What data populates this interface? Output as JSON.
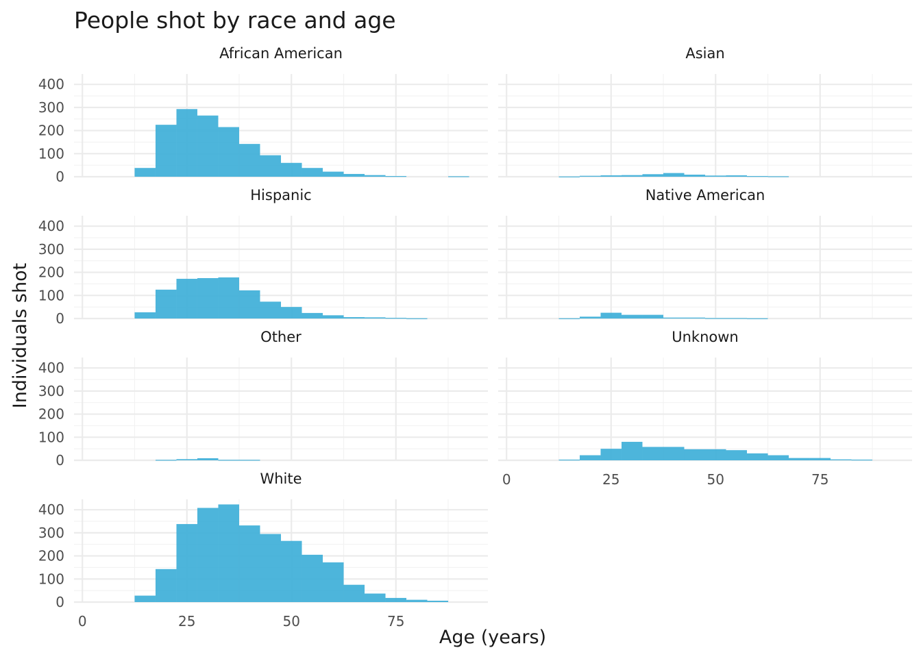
{
  "chart_data": {
    "type": "bar",
    "subtype": "faceted-histogram",
    "title": "People shot by race and age",
    "xlabel": "Age (years)",
    "ylabel": "Individuals shot",
    "xlim": [
      -2,
      97
    ],
    "ylim": [
      0,
      445
    ],
    "x_ticks": [
      0,
      25,
      50,
      75
    ],
    "y_ticks": [
      0,
      100,
      200,
      300,
      400
    ],
    "bin_width": 5,
    "bin_starts": [
      12.5,
      17.5,
      22.5,
      27.5,
      32.5,
      37.5,
      42.5,
      47.5,
      52.5,
      57.5,
      62.5,
      67.5,
      72.5,
      77.5,
      82.5,
      87.5
    ],
    "fill_color": "#3EAFD8",
    "grid": true,
    "legend": "none",
    "facets": [
      {
        "name": "African American",
        "values": [
          38,
          225,
          293,
          265,
          215,
          142,
          93,
          60,
          38,
          22,
          12,
          7,
          3,
          0,
          0,
          2
        ]
      },
      {
        "name": "Asian",
        "values": [
          1,
          4,
          6,
          7,
          11,
          16,
          9,
          5,
          6,
          3,
          2,
          0,
          0,
          0,
          0,
          0
        ]
      },
      {
        "name": "Hispanic",
        "values": [
          27,
          125,
          172,
          175,
          178,
          122,
          73,
          50,
          24,
          14,
          6,
          5,
          3,
          1,
          0,
          0
        ]
      },
      {
        "name": "Native American",
        "values": [
          1,
          8,
          25,
          16,
          16,
          4,
          4,
          2,
          2,
          1,
          0,
          0,
          0,
          0,
          0,
          0
        ]
      },
      {
        "name": "Other",
        "values": [
          0,
          2,
          5,
          9,
          2,
          2,
          0,
          0,
          0,
          0,
          0,
          0,
          0,
          0,
          0,
          0
        ]
      },
      {
        "name": "Unknown",
        "values": [
          3,
          22,
          50,
          80,
          58,
          58,
          48,
          48,
          44,
          30,
          22,
          10,
          10,
          4,
          3,
          0
        ]
      },
      {
        "name": "White",
        "values": [
          28,
          143,
          338,
          408,
          423,
          332,
          295,
          265,
          205,
          172,
          75,
          37,
          18,
          10,
          6,
          0
        ]
      }
    ]
  }
}
